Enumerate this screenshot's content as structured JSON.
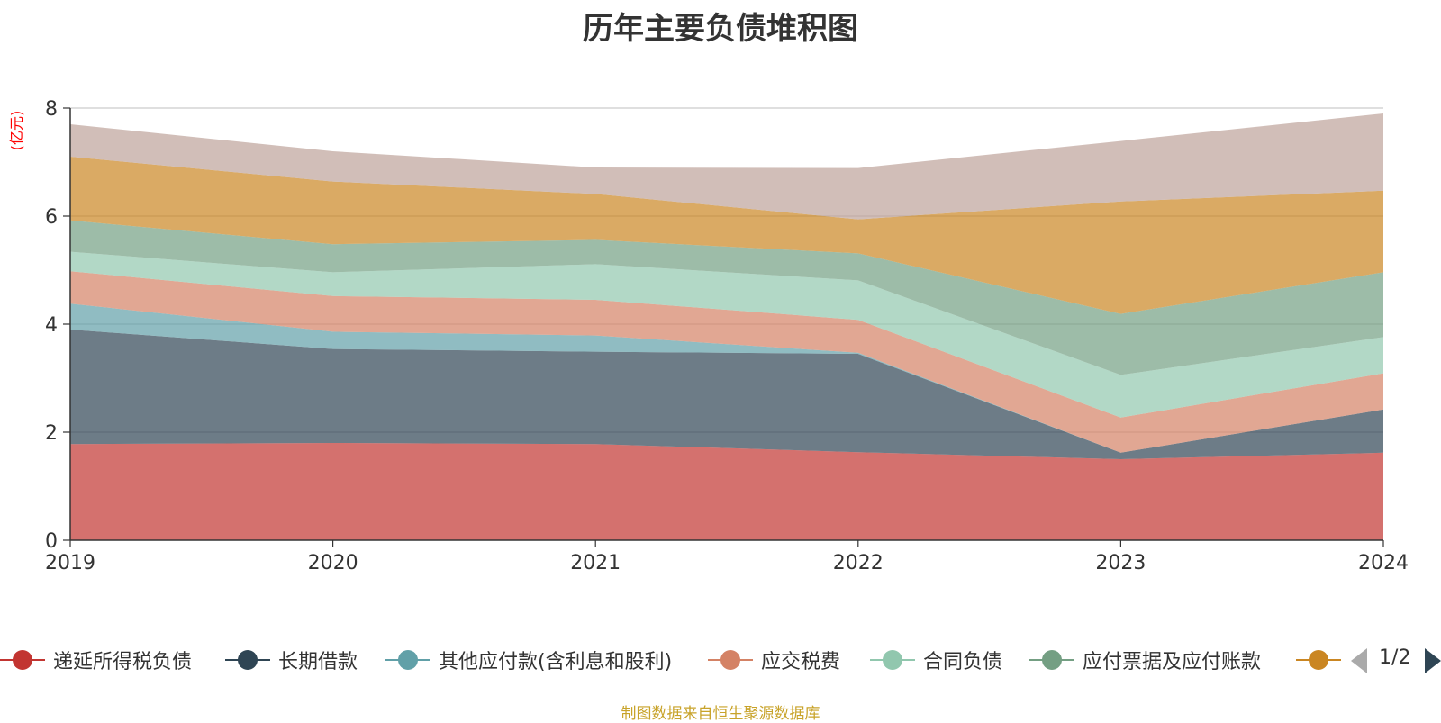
{
  "chart_data": {
    "type": "area",
    "stacked": true,
    "title": "历年主要负债堆积图",
    "unit_label": "(亿元)",
    "categories": [
      "2019",
      "2020",
      "2021",
      "2022",
      "2023",
      "2024"
    ],
    "ylim": [
      0,
      8
    ],
    "yticks": [
      0,
      2,
      4,
      6,
      8
    ],
    "grid": true,
    "legend_position": "bottom",
    "series": [
      {
        "name": "递延所得税负债",
        "color": "#c23531",
        "values": [
          1.78,
          1.8,
          1.78,
          1.63,
          1.5,
          1.62
        ]
      },
      {
        "name": "长期借款",
        "color": "#2f4554",
        "values": [
          2.12,
          1.74,
          1.71,
          1.82,
          0.12,
          0.8
        ]
      },
      {
        "name": "其他应付款(含利息和股利)",
        "color": "#61a0a8",
        "values": [
          0.48,
          0.32,
          0.3,
          0.02,
          0.0,
          0.0
        ]
      },
      {
        "name": "应交税费",
        "color": "#d48265",
        "values": [
          0.6,
          0.66,
          0.66,
          0.61,
          0.65,
          0.67
        ]
      },
      {
        "name": "合同负债",
        "color": "#91c7ae",
        "values": [
          0.36,
          0.44,
          0.66,
          0.73,
          0.79,
          0.67
        ]
      },
      {
        "name": "应付票据及应付账款",
        "color": "#749f83",
        "values": [
          0.58,
          0.52,
          0.45,
          0.5,
          1.13,
          1.2
        ]
      },
      {
        "name": "",
        "color": "#ca8622",
        "values": [
          1.18,
          1.16,
          0.85,
          0.63,
          2.08,
          1.51
        ]
      },
      {
        "name": "",
        "color": "#bda29a",
        "values": [
          0.6,
          0.56,
          0.49,
          0.95,
          1.12,
          1.43
        ]
      }
    ]
  },
  "legend": {
    "items": [
      {
        "label": "递延所得税负债",
        "color": "#c23531"
      },
      {
        "label": "长期借款",
        "color": "#2f4554"
      },
      {
        "label": "其他应付款(含利息和股利)",
        "color": "#61a0a8"
      },
      {
        "label": "应交税费",
        "color": "#d48265"
      },
      {
        "label": "合同负债",
        "color": "#91c7ae"
      },
      {
        "label": "应付票据及应付账款",
        "color": "#749f83"
      },
      {
        "label": "",
        "color": "#ca8622"
      }
    ],
    "page_indicator": "1/2"
  },
  "footer": {
    "source_text": "制图数据来自恒生聚源数据库"
  }
}
